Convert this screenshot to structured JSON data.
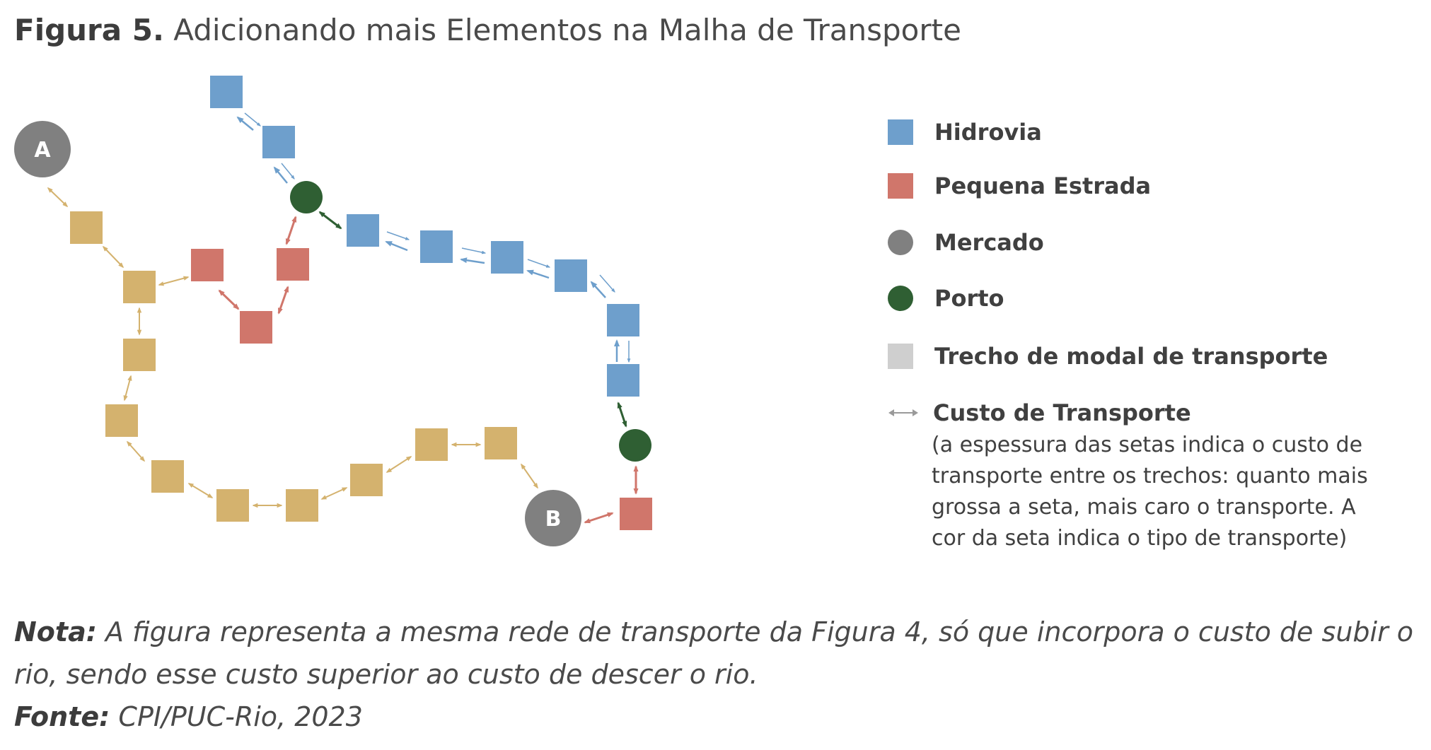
{
  "title": {
    "figure_label": "Figura 5.",
    "text": "Adicionando mais Elementos na Malha de Transporte"
  },
  "colors": {
    "hidrovia": "#6e9fcc",
    "estrada": "#d0766b",
    "mercado": "#808080",
    "porto": "#2f5f33",
    "trecho": "#d4b26e",
    "legend_trecho": "#cfcfcf",
    "legend_arrow": "#9a9a9a"
  },
  "diagram": {
    "markets": [
      {
        "label": "A"
      },
      {
        "label": "B"
      }
    ]
  },
  "legend": {
    "hidrovia": "Hidrovia",
    "estrada": "Pequena Estrada",
    "mercado": "Mercado",
    "porto": "Porto",
    "trecho": "Trecho de modal de transporte",
    "custo": "Custo de Transporte",
    "custo_desc": "(a espessura das setas indica o custo de transporte entre os trechos: quanto mais grossa a seta, mais caro o transporte. A cor da seta indica o tipo de transporte)"
  },
  "note": {
    "label": "Nota:",
    "text": "A figura representa a mesma rede de transporte da Figura 4, só que incorpora o custo de subir o rio, sendo esse custo superior ao custo de descer o rio.",
    "source_label": "Fonte:",
    "source": "CPI/PUC-Rio, 2023"
  }
}
